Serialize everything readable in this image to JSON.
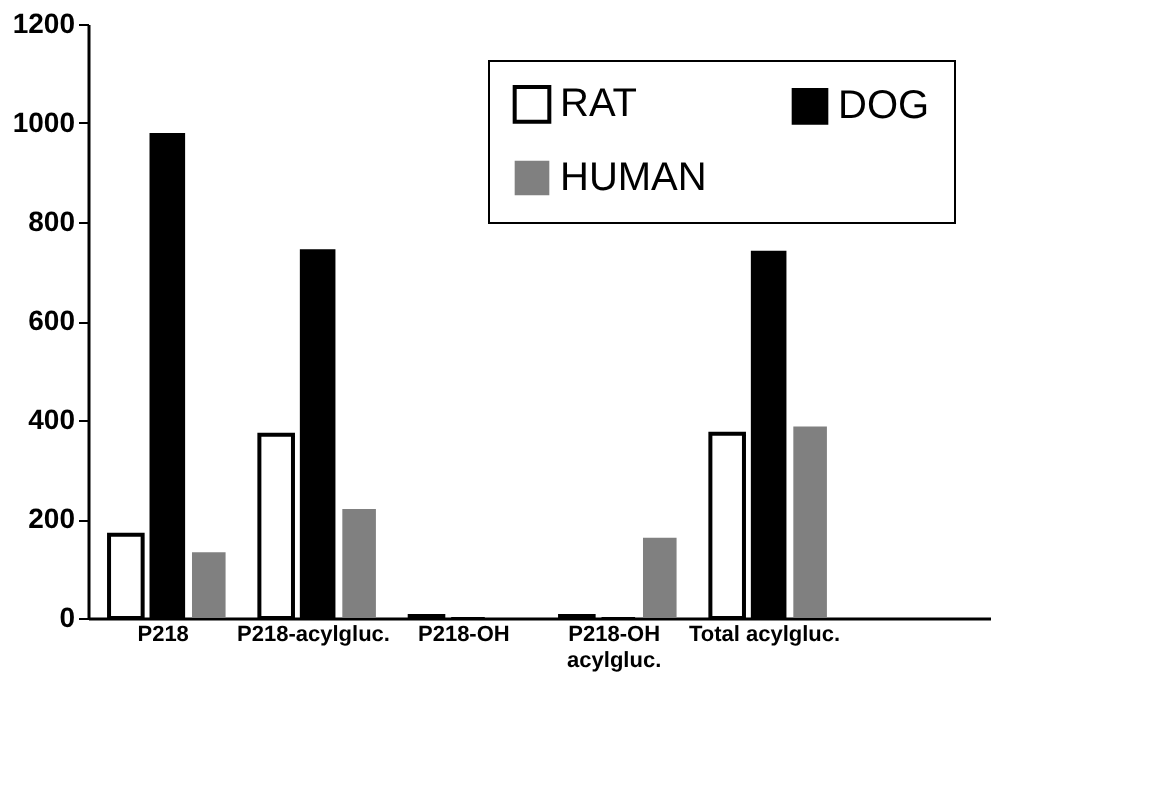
{
  "chart_data": {
    "type": "bar",
    "categories": [
      "P218",
      "P218-acylgluc.",
      "P218-OH",
      "P218-OH acylgluc.",
      "Total acylgluc."
    ],
    "series": [
      {
        "name": "RAT",
        "color": "#ffffff",
        "values": [
          168,
          370,
          4,
          4,
          372
        ]
      },
      {
        "name": "DOG",
        "color": "#000000",
        "values": [
          978,
          743,
          0,
          0,
          740
        ]
      },
      {
        "name": "HUMAN",
        "color": "#808080",
        "values": [
          133,
          220,
          0,
          162,
          387
        ]
      }
    ],
    "ylim": [
      0,
      1200
    ],
    "yticks": [
      0,
      200,
      400,
      600,
      800,
      {
        "value": 1000,
        "label": "1000"
      },
      {
        "value": 1200,
        "label": "1200"
      }
    ],
    "grid": false,
    "legend": "top right"
  }
}
